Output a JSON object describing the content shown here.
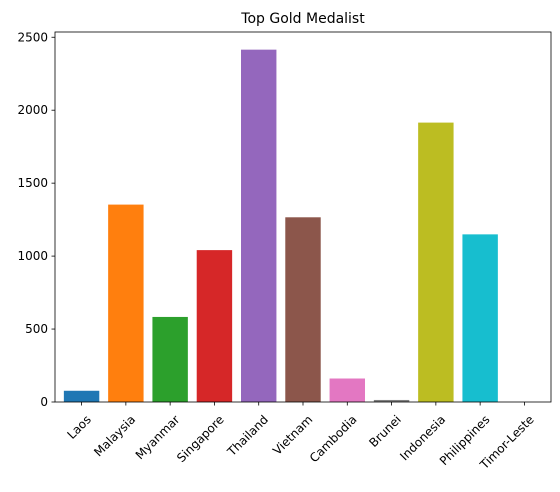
{
  "chart_data": {
    "type": "bar",
    "title": "Top Gold Medalist",
    "xlabel": "",
    "ylabel": "",
    "categories": [
      "Laos",
      "Malaysia",
      "Myanmar",
      "Singapore",
      "Thailand",
      "Vietnam",
      "Cambodia",
      "Brunei",
      "Indonesia",
      "Philippines",
      "Timor-Leste"
    ],
    "values": [
      77,
      1353,
      583,
      1041,
      2415,
      1266,
      161,
      14,
      1915,
      1149,
      0
    ],
    "colors": [
      "#1f77b4",
      "#ff7f0e",
      "#2ca02c",
      "#d62728",
      "#9467bd",
      "#8c564b",
      "#e377c2",
      "#7f7f7f",
      "#bcbd22",
      "#17becf",
      "#1f77b4"
    ],
    "ylim": [
      0,
      2536
    ],
    "yticks": [
      0,
      500,
      1000,
      1500,
      2000,
      2500
    ],
    "grid": false,
    "legend": false
  }
}
